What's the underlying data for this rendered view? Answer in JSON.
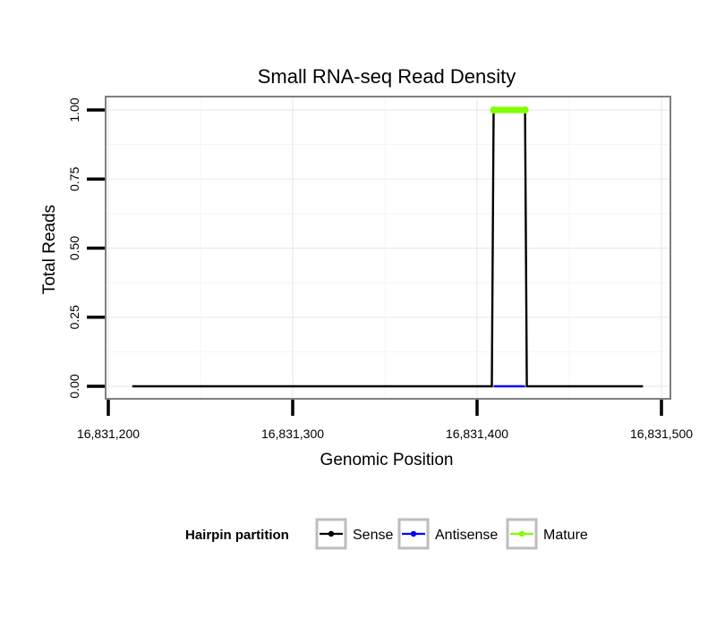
{
  "chart_data": {
    "type": "line",
    "title": "Small RNA-seq Read Density",
    "xlabel": "Genomic Position",
    "ylabel": "Total Reads",
    "xlim": [
      16831200,
      16831500
    ],
    "ylim": [
      0,
      1
    ],
    "x_ticks": [
      16831200,
      16831300,
      16831400,
      16831500
    ],
    "x_tick_labels": [
      "16,831,200",
      "16,831,300",
      "16,831,400",
      "16,831,500"
    ],
    "y_ticks": [
      0,
      0.25,
      0.5,
      0.75,
      1
    ],
    "y_tick_labels": [
      "0.00",
      "0.25",
      "0.50",
      "0.75",
      "1.00"
    ],
    "grid": true,
    "legend": {
      "title": "Hairpin partition",
      "position": "bottom"
    },
    "series": [
      {
        "name": "Sense",
        "color": "#000000",
        "points": [
          [
            16831213,
            0
          ],
          [
            16831408,
            0
          ],
          [
            16831409,
            1
          ],
          [
            16831426,
            1
          ],
          [
            16831427,
            0
          ],
          [
            16831490,
            0
          ]
        ]
      },
      {
        "name": "Antisense",
        "color": "#0000ff",
        "points": [
          [
            16831409,
            0
          ],
          [
            16831426,
            0
          ]
        ]
      },
      {
        "name": "Mature",
        "color": "#7fff00",
        "points": [
          [
            16831409,
            1
          ],
          [
            16831426,
            1
          ]
        ]
      }
    ]
  }
}
